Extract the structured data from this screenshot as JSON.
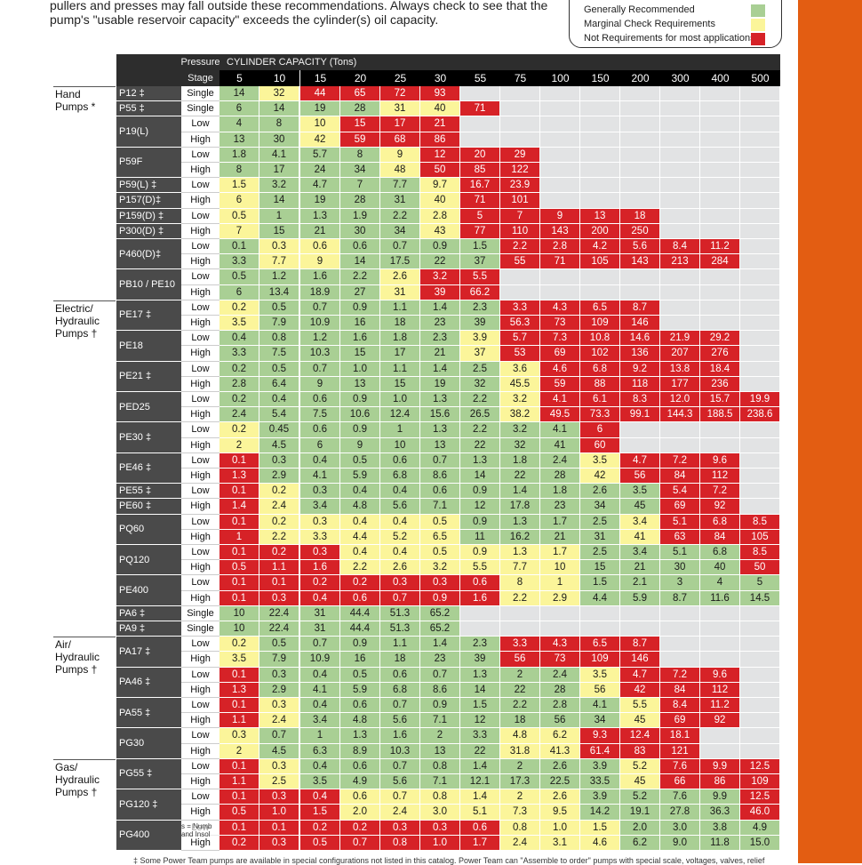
{
  "intro": {
    "line1": "",
    "line2": "pullers and presses may fall outside these recommendations.  Always check to see that the",
    "line3": "pump's \"usable reservoir capacity\" exceeds the cylinder(s) oil capacity."
  },
  "legend": {
    "green": "Generally Recommended",
    "yellow": "Marginal Check Requirements",
    "red": "Not Requirements for most applications",
    "colors": {
      "green": "#a9cf94",
      "yellow": "#fbf59a",
      "red": "#d62227"
    }
  },
  "table": {
    "stage_header_line1": "Pressure",
    "stage_header_line2": "Stage",
    "capacity_title": "CYLINDER CAPACITY (Tons)",
    "capacities": [
      "5",
      "10",
      "15",
      "20",
      "25",
      "30",
      "55",
      "75",
      "100",
      "150",
      "200",
      "300",
      "400",
      "500"
    ],
    "groups": [
      {
        "label": [
          "Hand",
          "Pumps *"
        ],
        "start": 0
      },
      {
        "label": [
          "Electric/",
          "Hydraulic",
          "Pumps †"
        ],
        "start": 14
      },
      {
        "label": [
          "Air/",
          "Hydraulic",
          "Pumps †"
        ],
        "start": 36
      },
      {
        "label": [
          "Gas/",
          "Hydraulic",
          "Pumps †"
        ],
        "start": 44
      }
    ],
    "rows": [
      {
        "model": "P12 ‡",
        "stage": "Single",
        "values": [
          "14",
          "32",
          "44",
          "65",
          "72",
          "93",
          "",
          "",
          "",
          "",
          "",
          "",
          "",
          ""
        ],
        "colors": "gyrrrrnnnnnnnn"
      },
      {
        "model": "P55 ‡",
        "stage": "Single",
        "values": [
          "6",
          "14",
          "19",
          "28",
          "31",
          "40",
          "71",
          "",
          "",
          "",
          "",
          "",
          "",
          ""
        ],
        "colors": "ggggyyrnnnnnnn"
      },
      {
        "model": "P19(L)",
        "stage": "Low",
        "values": [
          "4",
          "8",
          "10",
          "15",
          "17",
          "21",
          "",
          "",
          "",
          "",
          "",
          "",
          "",
          ""
        ],
        "colors": "ggyrrrnnnnnnnn"
      },
      {
        "model": "",
        "stage": "High",
        "values": [
          "13",
          "30",
          "42",
          "59",
          "68",
          "86",
          "",
          "",
          "",
          "",
          "",
          "",
          "",
          ""
        ],
        "colors": "ggyrrrnnnnnnnn"
      },
      {
        "model": "P59F",
        "stage": "Low",
        "values": [
          "1.8",
          "4.1",
          "5.7",
          "8",
          "9",
          "12",
          "20",
          "29",
          "",
          "",
          "",
          "",
          "",
          ""
        ],
        "colors": "ggggyrrrnnnnnn"
      },
      {
        "model": "",
        "stage": "High",
        "values": [
          "8",
          "17",
          "24",
          "34",
          "48",
          "50",
          "85",
          "122",
          "",
          "",
          "",
          "",
          "",
          ""
        ],
        "colors": "ggggyrrrnnnnnn"
      },
      {
        "model": "P59(L) ‡",
        "stage": "Low",
        "values": [
          "1.5",
          "3.2",
          "4.7",
          "7",
          "7.7",
          "9.7",
          "16.7",
          "23.9",
          "",
          "",
          "",
          "",
          "",
          ""
        ],
        "colors": "yggggyrrnnnnnn"
      },
      {
        "model": "P157(D)‡",
        "stage": "High",
        "values": [
          "6",
          "14",
          "19",
          "28",
          "31",
          "40",
          "71",
          "101",
          "",
          "",
          "",
          "",
          "",
          ""
        ],
        "colors": "yggggyrrnnnnnn"
      },
      {
        "model": "P159(D) ‡",
        "stage": "Low",
        "values": [
          "0.5",
          "1",
          "1.3",
          "1.9",
          "2.2",
          "2.8",
          "5",
          "7",
          "9",
          "13",
          "18",
          "",
          "",
          ""
        ],
        "colors": "yggggyrrrrrnnn"
      },
      {
        "model": "P300(D) ‡",
        "stage": "High",
        "values": [
          "7",
          "15",
          "21",
          "30",
          "34",
          "43",
          "77",
          "110",
          "143",
          "200",
          "250",
          "",
          "",
          ""
        ],
        "colors": "yggggyrrrrrnnn"
      },
      {
        "model": "P460(D)‡",
        "stage": "Low",
        "values": [
          "0.1",
          "0.3",
          "0.6",
          "0.6",
          "0.7",
          "0.9",
          "1.5",
          "2.2",
          "2.8",
          "4.2",
          "5.6",
          "8.4",
          "11.2",
          ""
        ],
        "colors": "gyyggggrrrrrrn"
      },
      {
        "model": "",
        "stage": "High",
        "values": [
          "3.3",
          "7.7",
          "9",
          "14",
          "17.5",
          "22",
          "37",
          "55",
          "71",
          "105",
          "143",
          "213",
          "284",
          ""
        ],
        "colors": "gyyggggrrrrrrn"
      },
      {
        "model": "PB10  / PE10",
        "stage": "Low",
        "values": [
          "0.5",
          "1.2",
          "1.6",
          "2.2",
          "2.6",
          "3.2",
          "5.5",
          "",
          "",
          "",
          "",
          "",
          "",
          ""
        ],
        "colors": "ggggyrrnnnnnnn"
      },
      {
        "model": "",
        "stage": "High",
        "values": [
          "6",
          "13.4",
          "18.9",
          "27",
          "31",
          "39",
          "66.2",
          "",
          "",
          "",
          "",
          "",
          "",
          ""
        ],
        "colors": "ggggyrrnnnnnnn"
      },
      {
        "model": "PE17 ‡",
        "stage": "Low",
        "values": [
          "0.2",
          "0.5",
          "0.7",
          "0.9",
          "1.1",
          "1.4",
          "2.3",
          "3.3",
          "4.3",
          "6.5",
          "8.7",
          "",
          "",
          ""
        ],
        "colors": "yggggggrrrrnnn"
      },
      {
        "model": "",
        "stage": "High",
        "values": [
          "3.5",
          "7.9",
          "10.9",
          "16",
          "18",
          "23",
          "39",
          "56.3",
          "73",
          "109",
          "146",
          "",
          "",
          ""
        ],
        "colors": "yggggggrrrrnnn"
      },
      {
        "model": "PE18",
        "stage": "Low",
        "values": [
          "0.4",
          "0.8",
          "1.2",
          "1.6",
          "1.8",
          "2.3",
          "3.9",
          "5.7",
          "7.3",
          "10.8",
          "14.6",
          "21.9",
          "29.2",
          ""
        ],
        "colors": "ggggggyrrrrrrn"
      },
      {
        "model": "",
        "stage": "High",
        "values": [
          "3.3",
          "7.5",
          "10.3",
          "15",
          "17",
          "21",
          "37",
          "53",
          "69",
          "102",
          "136",
          "207",
          "276",
          ""
        ],
        "colors": "ggggggyrrrrrrn"
      },
      {
        "model": "PE21 ‡",
        "stage": "Low",
        "values": [
          "0.2",
          "0.5",
          "0.7",
          "1.0",
          "1.1",
          "1.4",
          "2.5",
          "3.6",
          "4.6",
          "6.8",
          "9.2",
          "13.8",
          "18.4",
          ""
        ],
        "colors": "gggggggyrrrrrn"
      },
      {
        "model": "",
        "stage": "High",
        "values": [
          "2.8",
          "6.4",
          "9",
          "13",
          "15",
          "19",
          "32",
          "45.5",
          "59",
          "88",
          "118",
          "177",
          "236",
          ""
        ],
        "colors": "gggggggyrrrrrn"
      },
      {
        "model": "PED25",
        "stage": "Low",
        "values": [
          "0.2",
          "0.4",
          "0.6",
          "0.9",
          "1.0",
          "1.3",
          "2.2",
          "3.2",
          "4.1",
          "6.1",
          "8.3",
          "12.0",
          "15.7",
          "19.9"
        ],
        "colors": "gggggggyrrrrrr"
      },
      {
        "model": "",
        "stage": "High",
        "values": [
          "2.4",
          "5.4",
          "7.5",
          "10.6",
          "12.4",
          "15.6",
          "26.5",
          "38.2",
          "49.5",
          "73.3",
          "99.1",
          "144.3",
          "188.5",
          "238.6"
        ],
        "colors": "gggggggyrrrrrr"
      },
      {
        "model": "PE30 ‡",
        "stage": "Low",
        "values": [
          "0.2",
          "0.45",
          "0.6",
          "0.9",
          "1",
          "1.3",
          "2.2",
          "3.2",
          "4.1",
          "6",
          "",
          "",
          "",
          ""
        ],
        "colors": "yggggggggrnnnn"
      },
      {
        "model": "",
        "stage": "High",
        "values": [
          "2",
          "4.5",
          "6",
          "9",
          "10",
          "13",
          "22",
          "32",
          "41",
          "60",
          "",
          "",
          "",
          ""
        ],
        "colors": "yggggggggrnnnn"
      },
      {
        "model": "PE46 ‡",
        "stage": "Low",
        "values": [
          "0.1",
          "0.3",
          "0.4",
          "0.5",
          "0.6",
          "0.7",
          "1.3",
          "1.8",
          "2.4",
          "3.5",
          "4.7",
          "7.2",
          "9.6",
          ""
        ],
        "colors": "rggggggggyrrrn"
      },
      {
        "model": "",
        "stage": "High",
        "values": [
          "1.3",
          "2.9",
          "4.1",
          "5.9",
          "6.8",
          "8.6",
          "14",
          "22",
          "28",
          "42",
          "56",
          "84",
          "112",
          ""
        ],
        "colors": "rggggggggyrrrn"
      },
      {
        "model": "PE55 ‡",
        "stage": "Low",
        "values": [
          "0.1",
          "0.2",
          "0.3",
          "0.4",
          "0.4",
          "0.6",
          "0.9",
          "1.4",
          "1.8",
          "2.6",
          "3.5",
          "5.4",
          "7.2",
          ""
        ],
        "colors": "rygggggggggrrn"
      },
      {
        "model": "PE60 ‡",
        "stage": "High",
        "values": [
          "1.4",
          "2.4",
          "3.4",
          "4.8",
          "5.6",
          "7.1",
          "12",
          "17.8",
          "23",
          "34",
          "45",
          "69",
          "92",
          ""
        ],
        "colors": "rygggggggggrrn"
      },
      {
        "model": "PQ60",
        "stage": "Low",
        "values": [
          "0.1",
          "0.2",
          "0.3",
          "0.4",
          "0.4",
          "0.5",
          "0.9",
          "1.3",
          "1.7",
          "2.5",
          "3.4",
          "5.1",
          "6.8",
          "8.5"
        ],
        "colors": "ryyyyyggggyrrr"
      },
      {
        "model": "",
        "stage": "High",
        "values": [
          "1",
          "2.2",
          "3.3",
          "4.4",
          "5.2",
          "6.5",
          "11",
          "16.2",
          "21",
          "31",
          "41",
          "63",
          "84",
          "105"
        ],
        "colors": "ryyyyyggggyrrr"
      },
      {
        "model": "PQ120",
        "stage": "Low",
        "values": [
          "0.1",
          "0.2",
          "0.3",
          "0.4",
          "0.4",
          "0.5",
          "0.9",
          "1.3",
          "1.7",
          "2.5",
          "3.4",
          "5.1",
          "6.8",
          "8.5"
        ],
        "colors": "rrryyyyyyggggr"
      },
      {
        "model": "",
        "stage": "High",
        "values": [
          "0.5",
          "1.1",
          "1.6",
          "2.2",
          "2.6",
          "3.2",
          "5.5",
          "7.7",
          "10",
          "15",
          "21",
          "30",
          "40",
          "50"
        ],
        "colors": "rrryyyyyyggggr"
      },
      {
        "model": "PE400",
        "stage": "Low",
        "values": [
          "0.1",
          "0.1",
          "0.2",
          "0.2",
          "0.3",
          "0.3",
          "0.6",
          "8",
          "1",
          "1.5",
          "2.1",
          "3",
          "4",
          "5"
        ],
        "colors": "rrrrrrryyggggg"
      },
      {
        "model": "",
        "stage": "High",
        "values": [
          "0.1",
          "0.3",
          "0.4",
          "0.6",
          "0.7",
          "0.9",
          "1.6",
          "2.2",
          "2.9",
          "4.4",
          "5.9",
          "8.7",
          "11.6",
          "14.5"
        ],
        "colors": "rrrrrrryyggggg"
      },
      {
        "model": "PA6 ‡",
        "stage": "Single",
        "values": [
          "10",
          "22.4",
          "31",
          "44.4",
          "51.3",
          "65.2",
          "",
          "",
          "",
          "",
          "",
          "",
          "",
          ""
        ],
        "colors": "ggggggnnnnnnnn"
      },
      {
        "model": "PA9 ‡",
        "stage": "Single",
        "values": [
          "10",
          "22.4",
          "31",
          "44.4",
          "51.3",
          "65.2",
          "",
          "",
          "",
          "",
          "",
          "",
          "",
          ""
        ],
        "colors": "ggggggnnnnnnnn"
      },
      {
        "model": "PA17 ‡",
        "stage": "Low",
        "values": [
          "0.2",
          "0.5",
          "0.7",
          "0.9",
          "1.1",
          "1.4",
          "2.3",
          "3.3",
          "4.3",
          "6.5",
          "8.7",
          "",
          "",
          ""
        ],
        "colors": "yggggggrrrrnnn"
      },
      {
        "model": "",
        "stage": "High",
        "values": [
          "3.5",
          "7.9",
          "10.9",
          "16",
          "18",
          "23",
          "39",
          "56",
          "73",
          "109",
          "146",
          "",
          "",
          ""
        ],
        "colors": "yggggggrrrrnnn"
      },
      {
        "model": "PA46 ‡",
        "stage": "Low",
        "values": [
          "0.1",
          "0.3",
          "0.4",
          "0.5",
          "0.6",
          "0.7",
          "1.3",
          "2",
          "2.4",
          "3.5",
          "4.7",
          "7.2",
          "9.6",
          ""
        ],
        "colors": "rggggggggyrrrn"
      },
      {
        "model": "",
        "stage": "High",
        "values": [
          "1.3",
          "2.9",
          "4.1",
          "5.9",
          "6.8",
          "8.6",
          "14",
          "22",
          "28",
          "56",
          "42",
          "84",
          "112",
          ""
        ],
        "colors": "rggggggggyrrrn"
      },
      {
        "model": "PA55 ‡",
        "stage": "Low",
        "values": [
          "0.1",
          "0.3",
          "0.4",
          "0.6",
          "0.7",
          "0.9",
          "1.5",
          "2.2",
          "2.8",
          "4.1",
          "5.5",
          "8.4",
          "11.2",
          ""
        ],
        "colors": "ryggggggggyrrn"
      },
      {
        "model": "",
        "stage": "High",
        "values": [
          "1.1",
          "2.4",
          "3.4",
          "4.8",
          "5.6",
          "7.1",
          "12",
          "18",
          "56",
          "34",
          "45",
          "69",
          "92",
          ""
        ],
        "colors": "ryggggggggyrrn"
      },
      {
        "model": "PG30",
        "stage": "Low",
        "values": [
          "0.3",
          "0.7",
          "1",
          "1.3",
          "1.6",
          "2",
          "3.3",
          "4.8",
          "6.2",
          "9.3",
          "12.4",
          "18.1",
          "",
          ""
        ],
        "colors": "yggggggyyrrrnn"
      },
      {
        "model": "",
        "stage": "High",
        "values": [
          "2",
          "4.5",
          "6.3",
          "8.9",
          "10.3",
          "13",
          "22",
          "31.8",
          "41.3",
          "61.4",
          "83",
          "121",
          "",
          ""
        ],
        "colors": "yggggggyyrrrnn"
      },
      {
        "model": "PG55 ‡",
        "stage": "Low",
        "values": [
          "0.1",
          "0.3",
          "0.4",
          "0.6",
          "0.7",
          "0.8",
          "1.4",
          "2",
          "2.6",
          "3.9",
          "5.2",
          "7.6",
          "9.9",
          "12.5"
        ],
        "colors": "ryggggggggyrrr"
      },
      {
        "model": "",
        "stage": "High",
        "values": [
          "1.1",
          "2.5",
          "3.5",
          "4.9",
          "5.6",
          "7.1",
          "12.1",
          "17.3",
          "22.5",
          "33.5",
          "45",
          "66",
          "86",
          "109"
        ],
        "colors": "ryggggggggyrrr"
      },
      {
        "model": "PG120 ‡",
        "stage": "Low",
        "values": [
          "0.1",
          "0.3",
          "0.4",
          "0.6",
          "0.7",
          "0.8",
          "1.4",
          "2",
          "2.6",
          "3.9",
          "5.2",
          "7.6",
          "9.9",
          "12.5"
        ],
        "colors": "rrryyyyyyggggr"
      },
      {
        "model": "",
        "stage": "High",
        "values": [
          "0.5",
          "1.0",
          "1.5",
          "2.0",
          "2.4",
          "3.0",
          "5.1",
          "7.3",
          "9.5",
          "14.2",
          "19.1",
          "27.8",
          "36.3",
          "46.0"
        ],
        "colors": "rrryyyyyyggggr"
      },
      {
        "model": "PG400",
        "stage": "Low",
        "values": [
          "0.1",
          "0.1",
          "0.2",
          "0.2",
          "0.3",
          "0.3",
          "0.6",
          "0.8",
          "1.0",
          "1.5",
          "2.0",
          "3.0",
          "3.8",
          "4.9"
        ],
        "colors": "rrrrrrryyygggg"
      },
      {
        "model": "",
        "stage": "High",
        "values": [
          "0.2",
          "0.3",
          "0.5",
          "0.7",
          "0.8",
          "1.0",
          "1.7",
          "2.4",
          "3.1",
          "4.6",
          "6.2",
          "9.0",
          "11.8",
          "15.0"
        ],
        "colors": "rrrrrrryyygggg"
      }
    ]
  },
  "footnote": "‡ Some Power Team pumps are available in special configurations not listed in this catalog.  Power Team can \"Assemble to order\" pumps with special scale, voltages, valves, relief",
  "stage_overlay": "s = Numb and Insol"
}
